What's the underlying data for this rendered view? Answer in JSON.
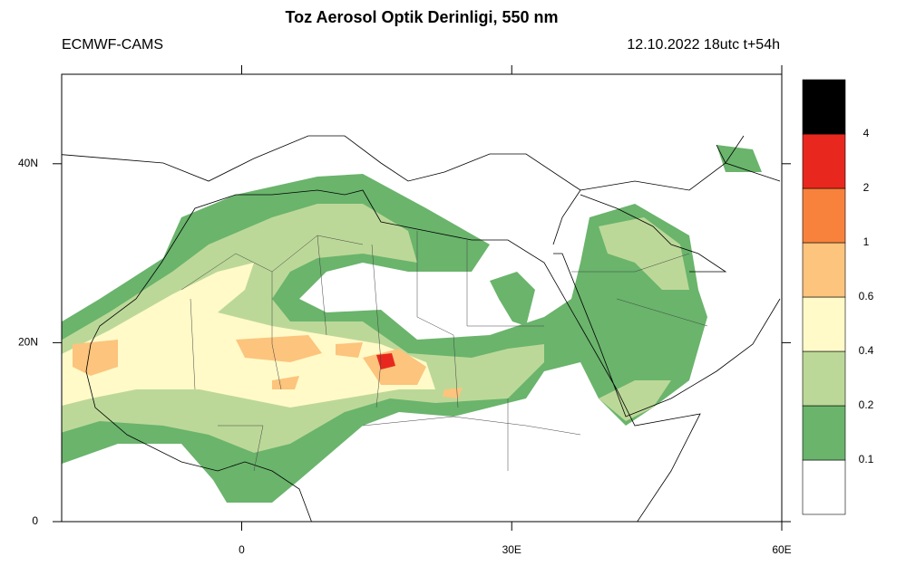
{
  "title": "Toz Aerosol Optik Derinligi, 550 nm",
  "subtitle_left": "ECMWF-CAMS",
  "subtitle_right": "12.10.2022 18utc t+54h",
  "map": {
    "xlim": [
      -20,
      60
    ],
    "ylim": [
      0,
      50
    ],
    "xticks": [
      0,
      {
        "value": 30,
        "label": "30E"
      },
      {
        "value": 60,
        "label": "60E"
      }
    ],
    "yticks": [
      0,
      {
        "value": 20,
        "label": "20N"
      },
      {
        "value": 40,
        "label": "40N"
      }
    ]
  },
  "colorbar": {
    "levels": [
      0.1,
      0.2,
      0.4,
      0.6,
      1,
      2,
      4
    ],
    "colors": [
      "#ffffff",
      "#6ab46c",
      "#bcd898",
      "#fffac8",
      "#fcc47c",
      "#f8823c",
      "#e8281e",
      "#000000"
    ]
  }
}
